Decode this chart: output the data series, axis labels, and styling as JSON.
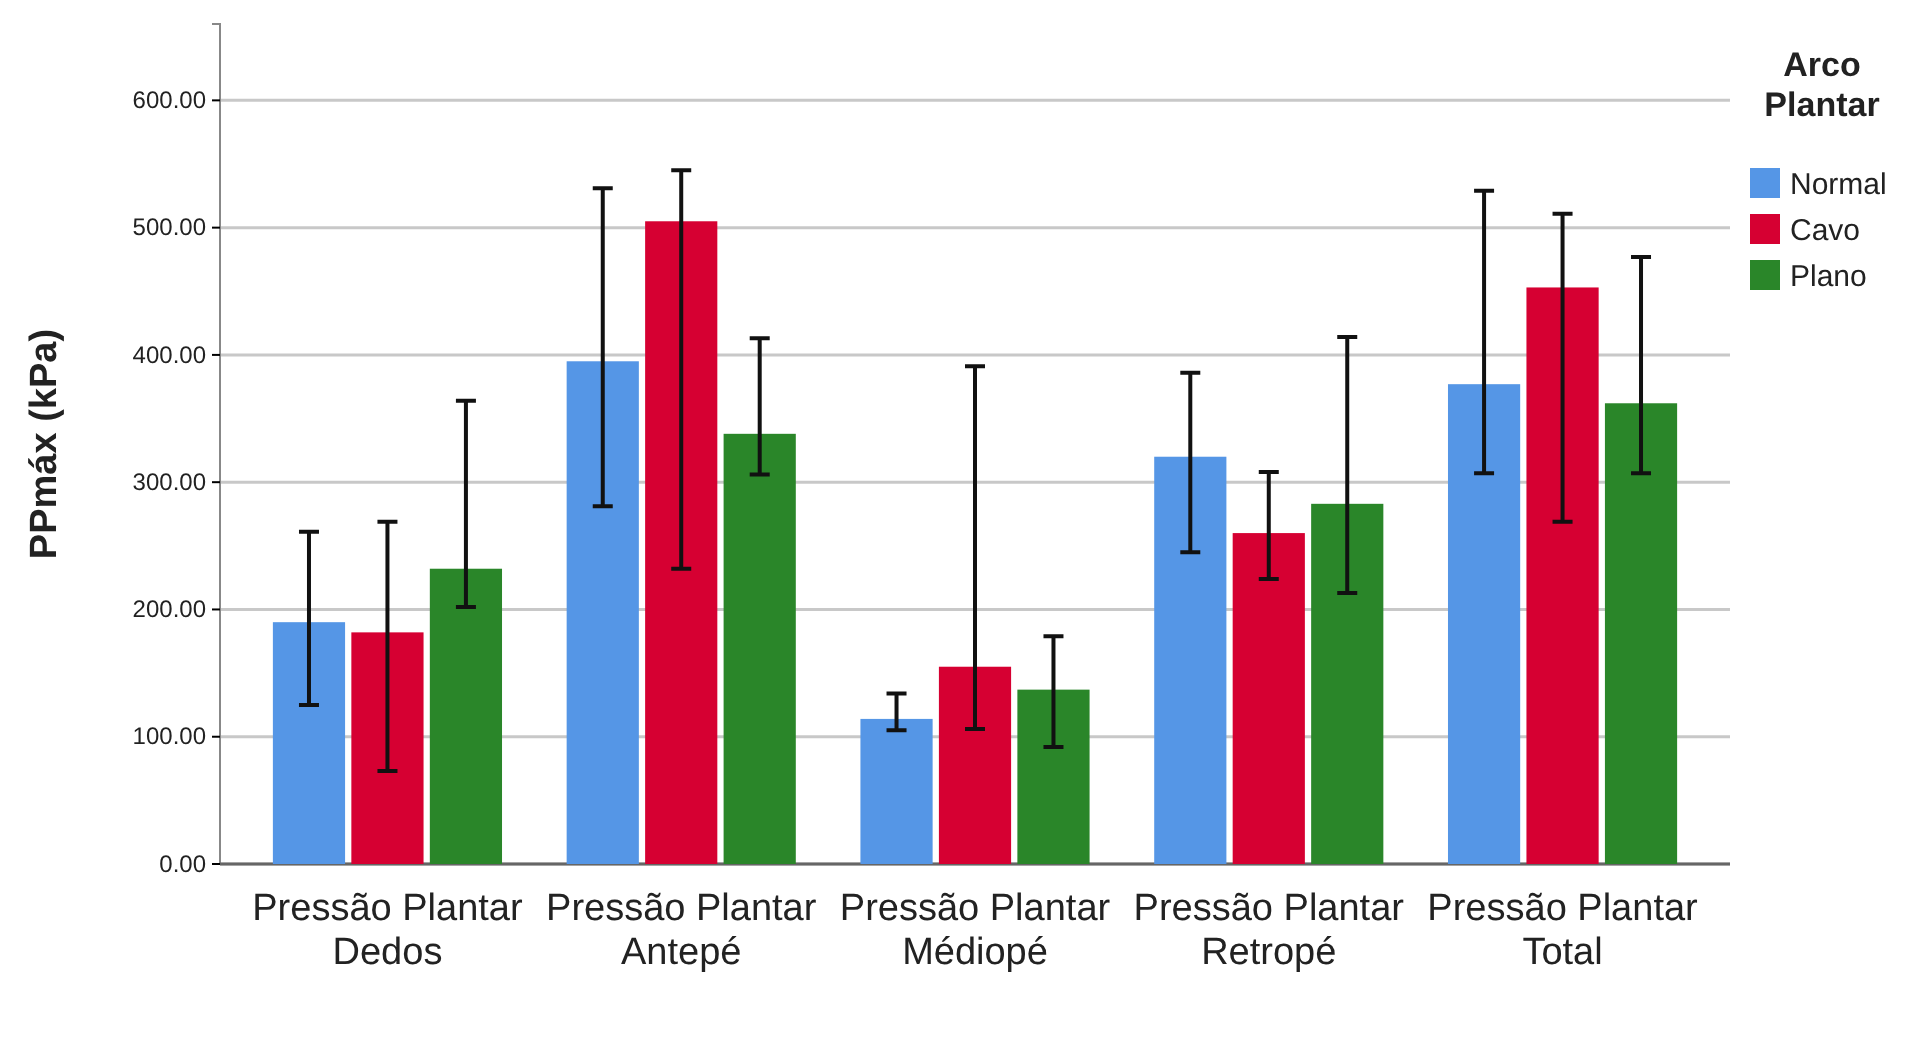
{
  "chart_data": {
    "type": "bar",
    "ylabel": "PPmáx (kPa)",
    "legend_title": "Arco Plantar",
    "categories": [
      "Pressão Plantar Dedos",
      "Pressão Plantar Antepé",
      "Pressão Plantar Médiopé",
      "Pressão Plantar Retropé",
      "Pressão Plantar Total"
    ],
    "series": [
      {
        "name": "Normal",
        "color": "#5596e6",
        "values": [
          190,
          395,
          114,
          320,
          377
        ],
        "errors": [
          [
            125,
            261
          ],
          [
            281,
            531
          ],
          [
            105,
            134
          ],
          [
            245,
            386
          ],
          [
            307,
            529
          ]
        ]
      },
      {
        "name": "Cavo",
        "color": "#d60032",
        "values": [
          182,
          505,
          155,
          260,
          453
        ],
        "errors": [
          [
            73,
            269
          ],
          [
            232,
            545
          ],
          [
            106,
            391
          ],
          [
            224,
            308
          ],
          [
            269,
            511
          ]
        ]
      },
      {
        "name": "Plano",
        "color": "#2a8629",
        "values": [
          232,
          338,
          137,
          283,
          362
        ],
        "errors": [
          [
            202,
            364
          ],
          [
            306,
            413
          ],
          [
            92,
            179
          ],
          [
            213,
            414
          ],
          [
            307,
            477
          ]
        ]
      }
    ],
    "ylim": [
      0,
      660
    ],
    "yticks": [
      {
        "value": 0,
        "label": "0.00"
      },
      {
        "value": 100,
        "label": "100.00"
      },
      {
        "value": 200,
        "label": "200.00"
      },
      {
        "value": 300,
        "label": "300.00"
      },
      {
        "value": 400,
        "label": "400.00"
      },
      {
        "value": 500,
        "label": "500.00"
      },
      {
        "value": 600,
        "label": "600.00"
      }
    ],
    "grid": "y",
    "legend": "top right"
  }
}
